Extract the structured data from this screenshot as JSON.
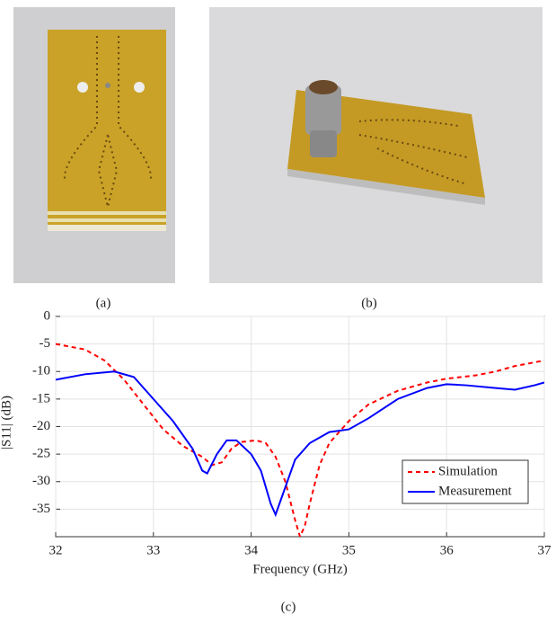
{
  "captions": {
    "a": "(a)",
    "b": "(b)",
    "c": "(c)"
  },
  "chart_data": {
    "type": "line",
    "xlabel": "Frequency (GHz)",
    "ylabel": "|S11| (dB)",
    "xlim": [
      32,
      37
    ],
    "ylim": [
      -40,
      0
    ],
    "xticks": [
      32,
      33,
      34,
      35,
      36,
      37
    ],
    "yticks": [
      0,
      -5,
      -10,
      -15,
      -20,
      -25,
      -30,
      -35
    ],
    "grid": true,
    "legend": "lower right",
    "series": [
      {
        "name": "Simulation",
        "color": "#ff0000",
        "dash": true,
        "x": [
          32,
          32.3,
          32.5,
          32.7,
          32.9,
          33.1,
          33.3,
          33.5,
          33.6,
          33.7,
          33.8,
          33.9,
          34.05,
          34.15,
          34.25,
          34.35,
          34.45,
          34.5,
          34.55,
          34.6,
          34.7,
          34.8,
          35,
          35.2,
          35.5,
          35.8,
          36,
          36.3,
          36.5,
          36.7,
          37
        ],
        "values": [
          -5,
          -6,
          -8,
          -11.5,
          -16,
          -20.5,
          -23.5,
          -25.5,
          -27,
          -26.5,
          -24,
          -22.8,
          -22.5,
          -23,
          -25.5,
          -30,
          -37,
          -40,
          -38,
          -34,
          -27,
          -23,
          -19,
          -16,
          -13.5,
          -12,
          -11.3,
          -10.7,
          -10,
          -9,
          -8
        ]
      },
      {
        "name": "Measurement",
        "color": "#0000ff",
        "dash": false,
        "x": [
          32,
          32.3,
          32.6,
          32.8,
          33,
          33.2,
          33.4,
          33.5,
          33.55,
          33.65,
          33.75,
          33.85,
          34,
          34.1,
          34.2,
          34.25,
          34.35,
          34.45,
          34.6,
          34.8,
          35,
          35.2,
          35.5,
          35.8,
          36,
          36.2,
          36.5,
          36.7,
          36.9,
          37
        ],
        "values": [
          -11.5,
          -10.5,
          -10,
          -11,
          -15,
          -19,
          -24,
          -28,
          -28.5,
          -25,
          -22.5,
          -22.5,
          -25,
          -28,
          -34,
          -36,
          -31,
          -26,
          -23,
          -21,
          -20.5,
          -18.5,
          -15,
          -13,
          -12.3,
          -12.5,
          -13,
          -13.3,
          -12.5,
          -12
        ]
      }
    ]
  }
}
